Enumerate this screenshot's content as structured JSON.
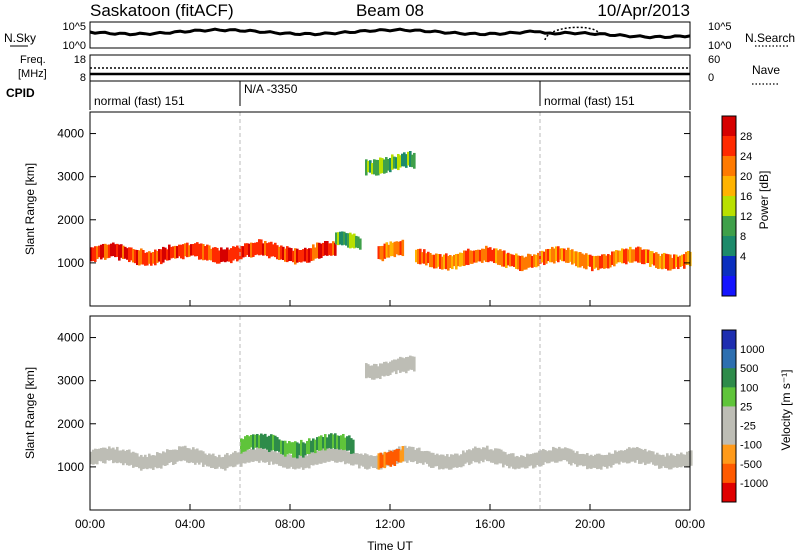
{
  "header": {
    "station": "Saskatoon (fitACF)",
    "beam": "Beam 08",
    "date": "10/Apr/2013"
  },
  "noise_panel": {
    "left_label": "N.Sky",
    "right_label": "N.Search",
    "left_ticks": [
      "10^5",
      "10^0"
    ],
    "right_ticks": [
      "10^5",
      "10^0"
    ]
  },
  "freq_panel": {
    "left_label_line1": "Freq.",
    "left_label_line2": "[MHz]",
    "right_label": "Nave",
    "left_ticks": [
      "18",
      "8"
    ],
    "right_ticks": [
      "60",
      "0"
    ]
  },
  "cpid_panel": {
    "label": "CPID",
    "segments": [
      {
        "text": "normal (fast) 151",
        "start_hour": 0,
        "end_hour": 6
      },
      {
        "text": "N/A -3350",
        "start_hour": 6,
        "end_hour": 18
      },
      {
        "text": "normal (fast) 151",
        "start_hour": 18,
        "end_hour": 24
      }
    ]
  },
  "power_panel": {
    "ylabel": "Slant Range [km]",
    "yticks": [
      "4000",
      "3000",
      "2000",
      "1000"
    ],
    "colorbar_label": "Power [dB]",
    "colorbar_ticks": [
      "28",
      "24",
      "20",
      "16",
      "12",
      "8",
      "4"
    ],
    "colors": [
      "#d60000",
      "#ff2a00",
      "#ff7a00",
      "#ffb300",
      "#b9e000",
      "#3fa04a",
      "#1c8a6a",
      "#0a2fbf",
      "#1414ff"
    ]
  },
  "velocity_panel": {
    "ylabel": "Slant Range [km]",
    "yticks": [
      "4000",
      "3000",
      "2000",
      "1000"
    ],
    "colorbar_label": "Velocity [m s⁻¹]",
    "colorbar_ticks": [
      "1000",
      "500",
      "100",
      "25",
      "-25",
      "-100",
      "-500",
      "-1000"
    ],
    "colors": [
      "#1e2eb0",
      "#2d6fb0",
      "#2e8b4a",
      "#5fc43a",
      "#bdbdb5",
      "#bdbdb5",
      "#ff9a1a",
      "#ff5a00",
      "#e00000"
    ]
  },
  "xaxis": {
    "label": "Time UT",
    "ticks": [
      "00:00",
      "04:00",
      "08:00",
      "12:00",
      "16:00",
      "20:00",
      "00:00"
    ]
  },
  "chart_data": [
    {
      "type": "heatmap",
      "title": "",
      "xlabel": "Time UT",
      "ylabel": "Slant Range [km]",
      "xlim": [
        0,
        24
      ],
      "ylim": [
        0,
        4500
      ],
      "zlabel": "Power [dB]",
      "zlim": [
        0,
        32
      ],
      "bands": [
        {
          "t0": 0,
          "t1": 4,
          "range_km": 1200,
          "power_db": 28
        },
        {
          "t0": 4,
          "t1": 9.8,
          "range_km": 1250,
          "power_db": 28
        },
        {
          "t0": 9.8,
          "t1": 10.8,
          "range_km": 1500,
          "power_db": 14
        },
        {
          "t0": 11.5,
          "t1": 12.5,
          "range_km": 1300,
          "power_db": 26
        },
        {
          "t0": 13,
          "t1": 24,
          "range_km": 1100,
          "power_db": 26
        },
        {
          "t0": 11,
          "t1": 13,
          "range_km": 3300,
          "power_db": 12
        }
      ]
    },
    {
      "type": "heatmap",
      "title": "",
      "xlabel": "Time UT",
      "ylabel": "Slant Range [km]",
      "xlim": [
        0,
        24
      ],
      "ylim": [
        0,
        4500
      ],
      "zlabel": "Velocity [m s⁻¹]",
      "zlim": [
        -1000,
        1000
      ],
      "bands": [
        {
          "t0": 0,
          "t1": 24,
          "range_km": 1200,
          "velocity": 0
        },
        {
          "t0": 6,
          "t1": 10.5,
          "range_km": 1500,
          "velocity": 200
        },
        {
          "t0": 11.5,
          "t1": 12.5,
          "range_km": 1200,
          "velocity": -300
        },
        {
          "t0": 11,
          "t1": 13,
          "range_km": 3300,
          "velocity": 0
        }
      ]
    }
  ]
}
